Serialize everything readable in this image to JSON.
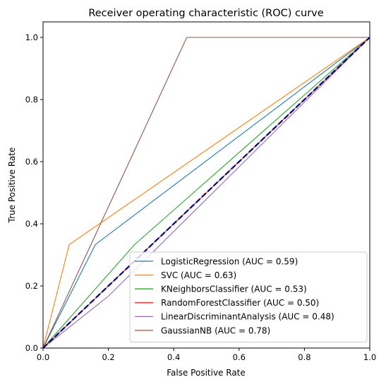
{
  "chart_data": {
    "type": "line",
    "title": "Receiver operating characteristic (ROC) curve",
    "xlabel": "False Positive Rate",
    "ylabel": "True Positive Rate",
    "xlim": [
      0.0,
      1.0
    ],
    "ylim": [
      0.0,
      1.05
    ],
    "grid": false,
    "legend_position": "lower-right",
    "x_ticks": [
      "0.0",
      "0.2",
      "0.4",
      "0.6",
      "0.8",
      "1.0"
    ],
    "y_ticks": [
      "0.0",
      "0.2",
      "0.4",
      "0.6",
      "0.8",
      "1.0"
    ],
    "series": [
      {
        "name": "LogisticRegression (AUC = 0.59)",
        "color": "#1f77b4",
        "points": [
          [
            0.0,
            0.0
          ],
          [
            0.16,
            0.333
          ],
          [
            1.0,
            1.0
          ]
        ]
      },
      {
        "name": "SVC (AUC = 0.63)",
        "color": "#ff7f0e",
        "points": [
          [
            0.0,
            0.0
          ],
          [
            0.08,
            0.333
          ],
          [
            1.0,
            1.0
          ]
        ]
      },
      {
        "name": "KNeighborsClassifier (AUC = 0.53)",
        "color": "#2ca02c",
        "points": [
          [
            0.0,
            0.0
          ],
          [
            0.28,
            0.333
          ],
          [
            1.0,
            1.0
          ]
        ]
      },
      {
        "name": "RandomForestClassifier (AUC = 0.50)",
        "color": "#d62728",
        "points": [
          [
            0.0,
            0.0
          ],
          [
            1.0,
            1.0
          ]
        ]
      },
      {
        "name": "LinearDiscriminantAnalysis (AUC = 0.48)",
        "color": "#9467bd",
        "points": [
          [
            0.0,
            0.0
          ],
          [
            0.2,
            0.167
          ],
          [
            1.0,
            1.0
          ]
        ]
      },
      {
        "name": "GaussianNB (AUC = 0.78)",
        "color": "#8c564b",
        "points": [
          [
            0.0,
            0.0
          ],
          [
            0.44,
            1.0
          ],
          [
            1.0,
            1.0
          ]
        ]
      }
    ],
    "reference_line": {
      "color": "#000080",
      "style": "dashed",
      "points": [
        [
          0.0,
          0.0
        ],
        [
          1.0,
          1.0
        ]
      ]
    }
  }
}
